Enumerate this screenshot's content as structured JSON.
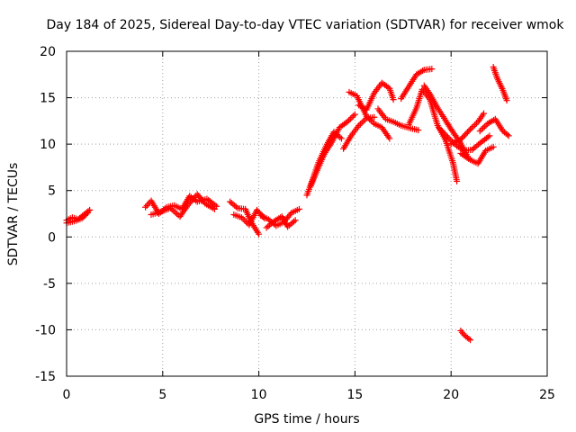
{
  "chart_data": {
    "type": "scatter",
    "title": "Day 184 of 2025, Sidereal Day-to-day VTEC variation (SDTVAR) for receiver wmok",
    "xlabel": "GPS time / hours",
    "ylabel": "SDTVAR / TECUs",
    "xlim": [
      0,
      25
    ],
    "ylim": [
      -15,
      20
    ],
    "xticks": [
      "0",
      "5",
      "10",
      "15",
      "20",
      "25"
    ],
    "yticks": [
      "-15",
      "-10",
      "-5",
      "0",
      "5",
      "10",
      "15",
      "20"
    ],
    "grid": true,
    "marker": "plus",
    "color": "#ff0000",
    "segments": [
      [
        [
          0.0,
          1.8
        ],
        [
          0.3,
          2.1
        ],
        [
          0.6,
          1.9
        ],
        [
          0.9,
          2.4
        ],
        [
          1.2,
          2.9
        ]
      ],
      [
        [
          0.0,
          1.5
        ],
        [
          0.4,
          1.7
        ],
        [
          0.8,
          2.0
        ],
        [
          1.1,
          2.6
        ]
      ],
      [
        [
          4.1,
          3.2
        ],
        [
          4.4,
          3.9
        ],
        [
          4.8,
          2.5
        ],
        [
          5.2,
          3.2
        ],
        [
          5.6,
          3.4
        ],
        [
          6.0,
          3.0
        ],
        [
          6.4,
          4.4
        ],
        [
          6.8,
          3.8
        ],
        [
          7.3,
          4.1
        ],
        [
          7.8,
          3.3
        ]
      ],
      [
        [
          4.4,
          2.4
        ],
        [
          4.9,
          2.7
        ],
        [
          5.4,
          3.1
        ],
        [
          5.9,
          2.2
        ],
        [
          6.3,
          3.4
        ],
        [
          6.8,
          4.6
        ],
        [
          7.2,
          3.6
        ],
        [
          7.7,
          3.0
        ]
      ],
      [
        [
          8.5,
          3.8
        ],
        [
          8.9,
          3.1
        ],
        [
          9.3,
          3.0
        ],
        [
          9.6,
          1.6
        ],
        [
          10.0,
          0.3
        ]
      ],
      [
        [
          8.7,
          2.4
        ],
        [
          9.1,
          2.1
        ],
        [
          9.5,
          1.3
        ],
        [
          9.9,
          2.9
        ],
        [
          10.3,
          2.0
        ]
      ],
      [
        [
          10.1,
          2.3
        ],
        [
          10.5,
          1.9
        ],
        [
          10.9,
          1.2
        ],
        [
          11.3,
          1.6
        ],
        [
          11.7,
          2.6
        ],
        [
          12.1,
          3.0
        ]
      ],
      [
        [
          10.4,
          1.0
        ],
        [
          10.8,
          1.7
        ],
        [
          11.2,
          2.2
        ],
        [
          11.5,
          1.1
        ],
        [
          11.9,
          1.8
        ]
      ],
      [
        [
          12.5,
          4.5
        ],
        [
          12.8,
          6.2
        ],
        [
          13.1,
          8.0
        ],
        [
          13.5,
          9.8
        ],
        [
          13.9,
          11.3
        ],
        [
          14.3,
          10.6
        ]
      ],
      [
        [
          12.7,
          5.5
        ],
        [
          13.0,
          7.0
        ],
        [
          13.4,
          8.9
        ],
        [
          13.8,
          10.2
        ],
        [
          14.2,
          11.8
        ],
        [
          14.6,
          12.4
        ],
        [
          15.0,
          13.2
        ]
      ],
      [
        [
          14.4,
          9.5
        ],
        [
          14.8,
          10.9
        ],
        [
          15.2,
          12.0
        ],
        [
          15.6,
          12.8
        ],
        [
          16.0,
          12.9
        ]
      ],
      [
        [
          14.7,
          15.6
        ],
        [
          15.1,
          15.2
        ],
        [
          15.6,
          13.0
        ],
        [
          16.0,
          12.2
        ],
        [
          16.4,
          11.8
        ],
        [
          16.8,
          10.6
        ]
      ],
      [
        [
          15.2,
          14.2
        ],
        [
          15.6,
          13.7
        ],
        [
          16.0,
          15.5
        ],
        [
          16.4,
          16.6
        ],
        [
          16.8,
          16.0
        ],
        [
          17.0,
          14.8
        ]
      ],
      [
        [
          16.2,
          13.8
        ],
        [
          16.6,
          12.7
        ],
        [
          17.0,
          12.4
        ],
        [
          17.4,
          12.0
        ],
        [
          17.9,
          11.7
        ],
        [
          18.3,
          11.5
        ]
      ],
      [
        [
          17.4,
          14.9
        ],
        [
          17.8,
          16.2
        ],
        [
          18.2,
          17.5
        ],
        [
          18.6,
          18.0
        ],
        [
          19.0,
          18.1
        ]
      ],
      [
        [
          17.8,
          12.1
        ],
        [
          18.2,
          13.9
        ],
        [
          18.5,
          15.9
        ],
        [
          18.9,
          14.8
        ],
        [
          19.3,
          12.0
        ],
        [
          19.7,
          10.5
        ],
        [
          20.1,
          8.0
        ],
        [
          20.3,
          6.0
        ]
      ],
      [
        [
          18.6,
          16.3
        ],
        [
          18.9,
          15.4
        ],
        [
          19.3,
          13.9
        ],
        [
          19.7,
          12.6
        ],
        [
          20.0,
          11.6
        ],
        [
          20.5,
          10.1
        ],
        [
          20.9,
          8.5
        ]
      ],
      [
        [
          19.4,
          11.7
        ],
        [
          19.9,
          10.6
        ],
        [
          20.3,
          9.8
        ],
        [
          20.7,
          9.3
        ],
        [
          21.1,
          9.4
        ],
        [
          21.5,
          10.1
        ],
        [
          22.0,
          10.9
        ]
      ],
      [
        [
          20.0,
          10.0
        ],
        [
          20.5,
          10.5
        ],
        [
          21.0,
          11.6
        ],
        [
          21.4,
          12.4
        ],
        [
          21.7,
          13.3
        ]
      ],
      [
        [
          20.5,
          9.0
        ],
        [
          21.0,
          8.3
        ],
        [
          21.4,
          7.9
        ],
        [
          21.8,
          9.3
        ],
        [
          22.2,
          9.7
        ]
      ],
      [
        [
          21.5,
          11.4
        ],
        [
          21.9,
          12.2
        ],
        [
          22.3,
          12.7
        ],
        [
          22.7,
          11.4
        ],
        [
          23.0,
          10.9
        ]
      ],
      [
        [
          22.2,
          18.3
        ],
        [
          22.4,
          17.1
        ],
        [
          22.7,
          15.8
        ],
        [
          22.9,
          14.7
        ]
      ],
      [
        [
          20.5,
          -10.1
        ],
        [
          20.7,
          -10.6
        ],
        [
          21.0,
          -11.1
        ]
      ]
    ]
  }
}
